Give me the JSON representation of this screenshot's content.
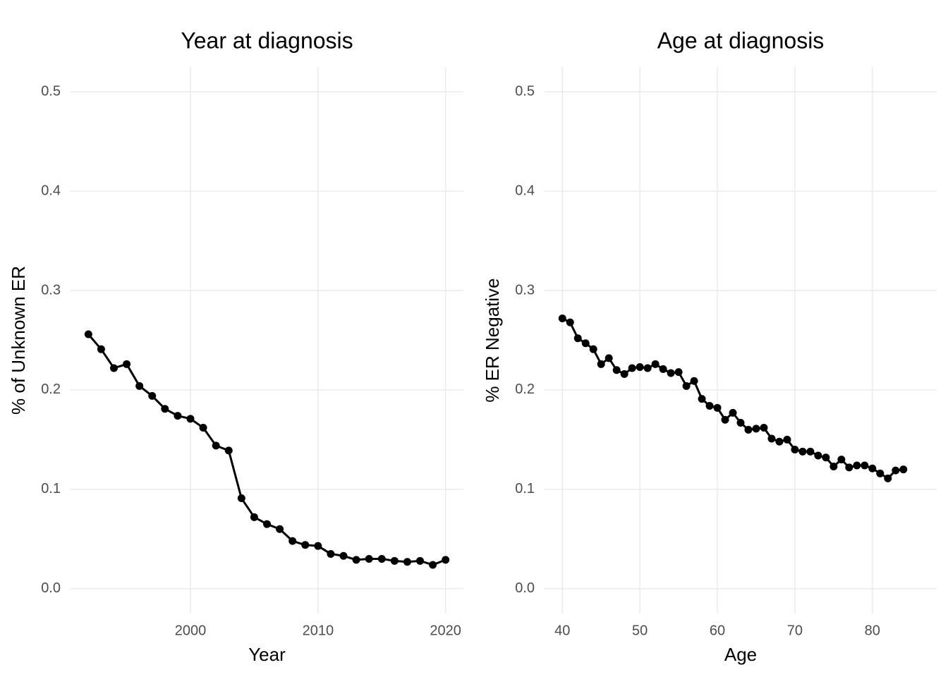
{
  "chart_data": [
    {
      "type": "line",
      "title": "Year at diagnosis",
      "xlabel": "Year",
      "ylabel": "% of Unknown ER",
      "x": [
        1992,
        1993,
        1994,
        1995,
        1996,
        1997,
        1998,
        1999,
        2000,
        2001,
        2002,
        2003,
        2004,
        2005,
        2006,
        2007,
        2008,
        2009,
        2010,
        2011,
        2012,
        2013,
        2014,
        2015,
        2016,
        2017,
        2018,
        2019,
        2020
      ],
      "series": [
        {
          "color": "#000000",
          "values": [
            0.256,
            0.241,
            0.222,
            0.226,
            0.204,
            0.194,
            0.181,
            0.174,
            0.171,
            0.162,
            0.144,
            0.139,
            0.091,
            0.072,
            0.065,
            0.06,
            0.048,
            0.044,
            0.043,
            0.035,
            0.033,
            0.029,
            0.03,
            0.03,
            0.028,
            0.027,
            0.028,
            0.024,
            0.029
          ]
        }
      ],
      "xlim": [
        1990.6,
        2021.4
      ],
      "xticks": [
        2000,
        2010,
        2020
      ],
      "ylim": [
        -0.025,
        0.525
      ],
      "yticks": [
        {
          "value": 0,
          "label": "0.0"
        },
        0.1,
        0.2,
        0.3,
        0.4,
        0.5
      ],
      "grid": true
    },
    {
      "type": "line",
      "title": "Age at diagnosis",
      "xlabel": "Age",
      "ylabel": "% ER Negative",
      "x": [
        40,
        41,
        42,
        43,
        44,
        45,
        46,
        47,
        48,
        49,
        50,
        51,
        52,
        53,
        54,
        55,
        56,
        57,
        58,
        59,
        60,
        61,
        62,
        63,
        64,
        65,
        66,
        67,
        68,
        69,
        70,
        71,
        72,
        73,
        74,
        75,
        76,
        77,
        78,
        79,
        80,
        81,
        82,
        83,
        84
      ],
      "series": [
        {
          "color": "#000000",
          "values": [
            0.272,
            0.268,
            0.252,
            0.247,
            0.241,
            0.226,
            0.232,
            0.22,
            0.216,
            0.222,
            0.223,
            0.222,
            0.226,
            0.221,
            0.217,
            0.218,
            0.204,
            0.209,
            0.191,
            0.184,
            0.182,
            0.17,
            0.177,
            0.167,
            0.16,
            0.161,
            0.162,
            0.151,
            0.148,
            0.15,
            0.14,
            0.138,
            0.138,
            0.134,
            0.132,
            0.123,
            0.13,
            0.122,
            0.124,
            0.124,
            0.121,
            0.116,
            0.111,
            0.119,
            0.12
          ]
        }
      ],
      "xlim": [
        37.7,
        88.3
      ],
      "xticks": [
        40,
        50,
        60,
        70,
        80
      ],
      "ylim": [
        -0.025,
        0.525
      ],
      "yticks": [
        {
          "value": 0,
          "label": "0.0"
        },
        0.1,
        0.2,
        0.3,
        0.4,
        0.5
      ],
      "grid": true
    }
  ]
}
